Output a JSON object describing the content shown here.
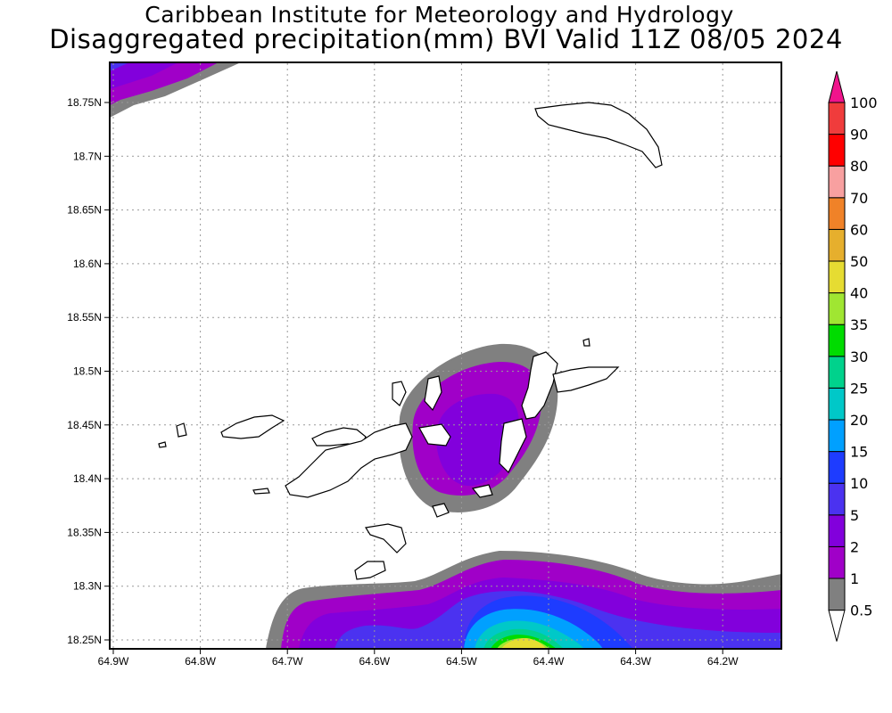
{
  "title": {
    "line1": "Caribbean Institute for Meteorology and Hydrology",
    "line2": "Disaggregated precipitation(mm) BVI Valid 11Z 08/05 2024"
  },
  "axes": {
    "lon_labels": [
      "64.9W",
      "64.8W",
      "64.7W",
      "64.6W",
      "64.5W",
      "64.4W",
      "64.3W",
      "64.2W"
    ],
    "lat_labels": [
      "18.75N",
      "18.7N",
      "18.65N",
      "18.6N",
      "18.55N",
      "18.5N",
      "18.45N",
      "18.4N",
      "18.35N",
      "18.3N",
      "18.25N"
    ]
  },
  "colorbar": {
    "labels": [
      "0.5",
      "1",
      "2",
      "5",
      "10",
      "15",
      "20",
      "25",
      "30",
      "35",
      "40",
      "50",
      "60",
      "70",
      "80",
      "90",
      "100"
    ],
    "colors": [
      "#808080",
      "#a000c8",
      "#8200dc",
      "#4b32f0",
      "#1e3cff",
      "#00a0ff",
      "#00c8c8",
      "#00d28c",
      "#00dc00",
      "#a0e632",
      "#e6dc32",
      "#e6af2d",
      "#f08228",
      "#f8a0a0",
      "#ff0000",
      "#f03c3c"
    ],
    "over_color": "#f0148c",
    "under_color": "#ffffff"
  }
}
